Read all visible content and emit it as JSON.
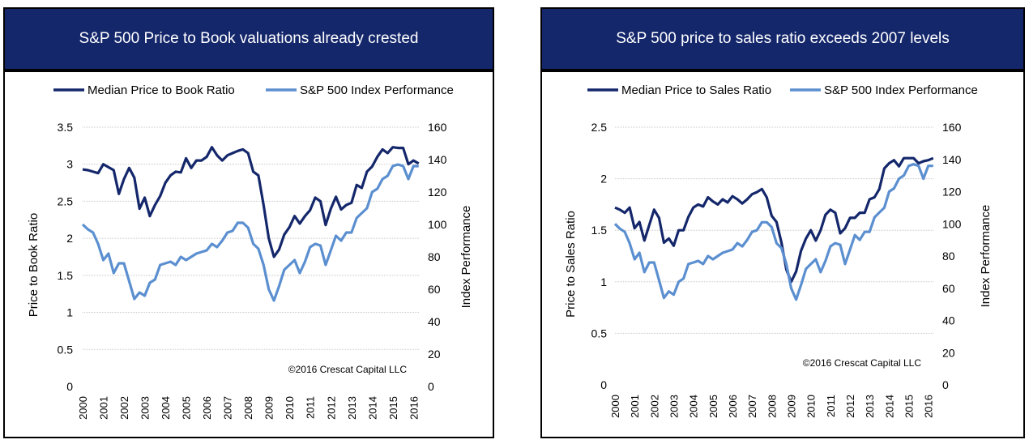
{
  "colors": {
    "banner_bg": "#14276b",
    "median_series": "#14276b",
    "index_series": "#5b8fd0",
    "gridline": "#c8c8c8"
  },
  "chart_data": [
    {
      "type": "line",
      "title": "S&P 500 Price to Book valuations already crested",
      "ylabel": "Price to Book Ratio",
      "y2label": "Index Performance",
      "ylim": [
        0,
        3.5
      ],
      "y2lim": [
        0,
        160
      ],
      "yticks": [
        "0",
        "0.5",
        "1",
        "1.5",
        "2",
        "2.5",
        "3",
        "3.5"
      ],
      "y2ticks": [
        "0",
        "20",
        "40",
        "60",
        "80",
        "100",
        "120",
        "140",
        "160"
      ],
      "xticks": [
        "2000",
        "2001",
        "2002",
        "2003",
        "2004",
        "2005",
        "2006",
        "2007",
        "2008",
        "2009",
        "2010",
        "2011",
        "2012",
        "2013",
        "2014",
        "2015",
        "2016"
      ],
      "xlim": [
        2000,
        2016.3
      ],
      "grid": true,
      "legend_position": "top",
      "watermark": "©2016 Crescat Capital LLC",
      "series": [
        {
          "name": "Median Price to Book Ratio",
          "axis": "left",
          "x": [
            2000,
            2000.25,
            2000.5,
            2000.75,
            2001,
            2001.25,
            2001.5,
            2001.75,
            2002,
            2002.25,
            2002.5,
            2002.75,
            2003,
            2003.25,
            2003.5,
            2003.75,
            2004,
            2004.25,
            2004.5,
            2004.75,
            2005,
            2005.25,
            2005.5,
            2005.75,
            2006,
            2006.25,
            2006.5,
            2006.75,
            2007,
            2007.25,
            2007.5,
            2007.75,
            2008,
            2008.25,
            2008.5,
            2008.75,
            2009,
            2009.25,
            2009.5,
            2009.75,
            2010,
            2010.25,
            2010.5,
            2010.75,
            2011,
            2011.25,
            2011.5,
            2011.75,
            2012,
            2012.25,
            2012.5,
            2012.75,
            2013,
            2013.25,
            2013.5,
            2013.75,
            2014,
            2014.25,
            2014.5,
            2014.75,
            2015,
            2015.25,
            2015.5,
            2015.75,
            2016,
            2016.25
          ],
          "values": [
            2.93,
            2.92,
            2.9,
            2.88,
            3.0,
            2.96,
            2.92,
            2.6,
            2.8,
            2.95,
            2.82,
            2.4,
            2.55,
            2.3,
            2.45,
            2.57,
            2.75,
            2.85,
            2.9,
            2.89,
            3.08,
            2.95,
            3.05,
            3.05,
            3.1,
            3.23,
            3.12,
            3.05,
            3.12,
            3.15,
            3.18,
            3.2,
            3.15,
            2.9,
            2.85,
            2.45,
            2.0,
            1.75,
            1.85,
            2.05,
            2.15,
            2.3,
            2.2,
            2.3,
            2.38,
            2.55,
            2.5,
            2.18,
            2.4,
            2.56,
            2.39,
            2.45,
            2.48,
            2.72,
            2.68,
            2.9,
            2.97,
            3.1,
            3.2,
            3.15,
            3.23,
            3.22,
            3.22,
            3.0,
            3.05,
            3.01
          ]
        },
        {
          "name": "S&P 500 Index Performance",
          "axis": "right",
          "x": [
            2000,
            2000.25,
            2000.5,
            2000.75,
            2001,
            2001.25,
            2001.5,
            2001.75,
            2002,
            2002.25,
            2002.5,
            2002.75,
            2003,
            2003.25,
            2003.5,
            2003.75,
            2004,
            2004.25,
            2004.5,
            2004.75,
            2005,
            2005.25,
            2005.5,
            2005.75,
            2006,
            2006.25,
            2006.5,
            2006.75,
            2007,
            2007.25,
            2007.5,
            2007.75,
            2008,
            2008.25,
            2008.5,
            2008.75,
            2009,
            2009.25,
            2009.5,
            2009.75,
            2010,
            2010.25,
            2010.5,
            2010.75,
            2011,
            2011.25,
            2011.5,
            2011.75,
            2012,
            2012.25,
            2012.5,
            2012.75,
            2013,
            2013.25,
            2013.5,
            2013.75,
            2014,
            2014.25,
            2014.5,
            2014.75,
            2015,
            2015.25,
            2015.5,
            2015.75,
            2016,
            2016.25
          ],
          "values": [
            100,
            97,
            95,
            88,
            78,
            82,
            70,
            76,
            76,
            65,
            54,
            58,
            56,
            64,
            66,
            75,
            76,
            77,
            75,
            80,
            78,
            80,
            82,
            83,
            84,
            88,
            86,
            90,
            95,
            96,
            101,
            101,
            98,
            88,
            85,
            75,
            60,
            53,
            62,
            72,
            75,
            78,
            70,
            77,
            86,
            88,
            87,
            75,
            84,
            93,
            90,
            95,
            95,
            104,
            107,
            110,
            120,
            122,
            128,
            130,
            136,
            137,
            136,
            128,
            136,
            136
          ]
        }
      ]
    },
    {
      "type": "line",
      "title": "S&P 500 price to sales ratio exceeds 2007 levels",
      "ylabel": "Price to Sales Ratio",
      "y2label": "Index Performance",
      "ylim": [
        0,
        2.5
      ],
      "y2lim": [
        0,
        160
      ],
      "yticks": [
        "0",
        "0.5",
        "1",
        "1.5",
        "2",
        "2.5"
      ],
      "y2ticks": [
        "0",
        "20",
        "40",
        "60",
        "80",
        "100",
        "120",
        "140",
        "160"
      ],
      "xticks": [
        "2000",
        "2001",
        "2002",
        "2003",
        "2004",
        "2005",
        "2006",
        "2007",
        "2008",
        "2009",
        "2010",
        "2011",
        "2012",
        "2013",
        "2014",
        "2015",
        "2016"
      ],
      "xlim": [
        2000,
        2016.3
      ],
      "grid": true,
      "legend_position": "top",
      "watermark": "©2016 Crescat Capital LLC",
      "series": [
        {
          "name": "Median Price to Sales Ratio",
          "axis": "left",
          "x": [
            2000,
            2000.25,
            2000.5,
            2000.75,
            2001,
            2001.25,
            2001.5,
            2001.75,
            2002,
            2002.25,
            2002.5,
            2002.75,
            2003,
            2003.25,
            2003.5,
            2003.75,
            2004,
            2004.25,
            2004.5,
            2004.75,
            2005,
            2005.25,
            2005.5,
            2005.75,
            2006,
            2006.25,
            2006.5,
            2006.75,
            2007,
            2007.25,
            2007.5,
            2007.75,
            2008,
            2008.25,
            2008.5,
            2008.75,
            2009,
            2009.25,
            2009.5,
            2009.75,
            2010,
            2010.25,
            2010.5,
            2010.75,
            2011,
            2011.25,
            2011.5,
            2011.75,
            2012,
            2012.25,
            2012.5,
            2012.75,
            2013,
            2013.25,
            2013.5,
            2013.75,
            2014,
            2014.25,
            2014.5,
            2014.75,
            2015,
            2015.25,
            2015.5,
            2015.75,
            2016,
            2016.25
          ],
          "values": [
            1.72,
            1.7,
            1.67,
            1.72,
            1.52,
            1.58,
            1.4,
            1.55,
            1.7,
            1.62,
            1.38,
            1.42,
            1.35,
            1.5,
            1.5,
            1.63,
            1.72,
            1.75,
            1.73,
            1.82,
            1.78,
            1.75,
            1.8,
            1.77,
            1.83,
            1.8,
            1.76,
            1.8,
            1.85,
            1.87,
            1.9,
            1.82,
            1.64,
            1.58,
            1.38,
            1.12,
            1.0,
            1.1,
            1.3,
            1.42,
            1.5,
            1.4,
            1.5,
            1.65,
            1.7,
            1.67,
            1.47,
            1.52,
            1.62,
            1.62,
            1.67,
            1.67,
            1.8,
            1.82,
            1.9,
            2.1,
            2.15,
            2.18,
            2.12,
            2.2,
            2.2,
            2.2,
            2.15,
            2.17,
            2.18,
            2.2
          ]
        },
        {
          "name": "S&P 500 Index Performance",
          "axis": "right",
          "x": [
            2000,
            2000.25,
            2000.5,
            2000.75,
            2001,
            2001.25,
            2001.5,
            2001.75,
            2002,
            2002.25,
            2002.5,
            2002.75,
            2003,
            2003.25,
            2003.5,
            2003.75,
            2004,
            2004.25,
            2004.5,
            2004.75,
            2005,
            2005.25,
            2005.5,
            2005.75,
            2006,
            2006.25,
            2006.5,
            2006.75,
            2007,
            2007.25,
            2007.5,
            2007.75,
            2008,
            2008.25,
            2008.5,
            2008.75,
            2009,
            2009.25,
            2009.5,
            2009.75,
            2010,
            2010.25,
            2010.5,
            2010.75,
            2011,
            2011.25,
            2011.5,
            2011.75,
            2012,
            2012.25,
            2012.5,
            2012.75,
            2013,
            2013.25,
            2013.5,
            2013.75,
            2014,
            2014.25,
            2014.5,
            2014.75,
            2015,
            2015.25,
            2015.5,
            2015.75,
            2016,
            2016.25
          ],
          "values": [
            100,
            97,
            95,
            88,
            78,
            82,
            70,
            76,
            76,
            65,
            54,
            58,
            56,
            64,
            66,
            75,
            76,
            77,
            75,
            80,
            78,
            80,
            82,
            83,
            84,
            88,
            86,
            90,
            95,
            96,
            101,
            101,
            98,
            88,
            85,
            75,
            60,
            53,
            62,
            72,
            75,
            78,
            70,
            77,
            86,
            88,
            87,
            75,
            84,
            93,
            90,
            95,
            95,
            104,
            107,
            110,
            120,
            122,
            128,
            130,
            136,
            137,
            136,
            128,
            136,
            136
          ]
        }
      ]
    }
  ]
}
